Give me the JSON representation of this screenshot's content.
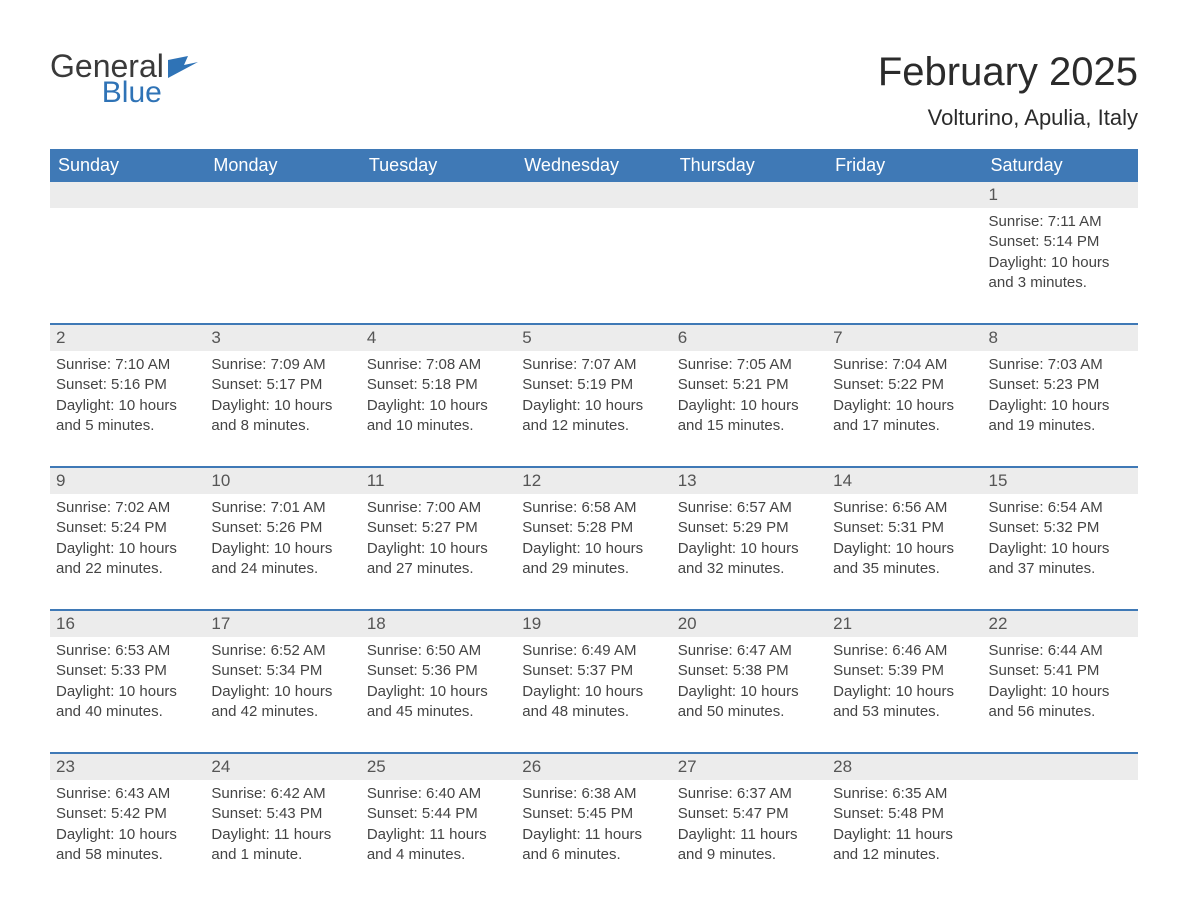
{
  "logo": {
    "line1": "General",
    "line2": "Blue"
  },
  "title": "February 2025",
  "location": "Volturino, Apulia, Italy",
  "colors": {
    "header_bg": "#3f79b6",
    "row_rule": "#3f79b6",
    "daynum_bg": "#ececec",
    "text": "#333333",
    "logo_blue": "#2f73b6"
  },
  "weekdays": [
    "Sunday",
    "Monday",
    "Tuesday",
    "Wednesday",
    "Thursday",
    "Friday",
    "Saturday"
  ],
  "labels": {
    "sunrise": "Sunrise:",
    "sunset": "Sunset:",
    "daylight": "Daylight:"
  },
  "first_weekday_index": 6,
  "days": [
    {
      "n": 1,
      "sunrise": "7:11 AM",
      "sunset": "5:14 PM",
      "daylight": "10 hours and 3 minutes."
    },
    {
      "n": 2,
      "sunrise": "7:10 AM",
      "sunset": "5:16 PM",
      "daylight": "10 hours and 5 minutes."
    },
    {
      "n": 3,
      "sunrise": "7:09 AM",
      "sunset": "5:17 PM",
      "daylight": "10 hours and 8 minutes."
    },
    {
      "n": 4,
      "sunrise": "7:08 AM",
      "sunset": "5:18 PM",
      "daylight": "10 hours and 10 minutes."
    },
    {
      "n": 5,
      "sunrise": "7:07 AM",
      "sunset": "5:19 PM",
      "daylight": "10 hours and 12 minutes."
    },
    {
      "n": 6,
      "sunrise": "7:05 AM",
      "sunset": "5:21 PM",
      "daylight": "10 hours and 15 minutes."
    },
    {
      "n": 7,
      "sunrise": "7:04 AM",
      "sunset": "5:22 PM",
      "daylight": "10 hours and 17 minutes."
    },
    {
      "n": 8,
      "sunrise": "7:03 AM",
      "sunset": "5:23 PM",
      "daylight": "10 hours and 19 minutes."
    },
    {
      "n": 9,
      "sunrise": "7:02 AM",
      "sunset": "5:24 PM",
      "daylight": "10 hours and 22 minutes."
    },
    {
      "n": 10,
      "sunrise": "7:01 AM",
      "sunset": "5:26 PM",
      "daylight": "10 hours and 24 minutes."
    },
    {
      "n": 11,
      "sunrise": "7:00 AM",
      "sunset": "5:27 PM",
      "daylight": "10 hours and 27 minutes."
    },
    {
      "n": 12,
      "sunrise": "6:58 AM",
      "sunset": "5:28 PM",
      "daylight": "10 hours and 29 minutes."
    },
    {
      "n": 13,
      "sunrise": "6:57 AM",
      "sunset": "5:29 PM",
      "daylight": "10 hours and 32 minutes."
    },
    {
      "n": 14,
      "sunrise": "6:56 AM",
      "sunset": "5:31 PM",
      "daylight": "10 hours and 35 minutes."
    },
    {
      "n": 15,
      "sunrise": "6:54 AM",
      "sunset": "5:32 PM",
      "daylight": "10 hours and 37 minutes."
    },
    {
      "n": 16,
      "sunrise": "6:53 AM",
      "sunset": "5:33 PM",
      "daylight": "10 hours and 40 minutes."
    },
    {
      "n": 17,
      "sunrise": "6:52 AM",
      "sunset": "5:34 PM",
      "daylight": "10 hours and 42 minutes."
    },
    {
      "n": 18,
      "sunrise": "6:50 AM",
      "sunset": "5:36 PM",
      "daylight": "10 hours and 45 minutes."
    },
    {
      "n": 19,
      "sunrise": "6:49 AM",
      "sunset": "5:37 PM",
      "daylight": "10 hours and 48 minutes."
    },
    {
      "n": 20,
      "sunrise": "6:47 AM",
      "sunset": "5:38 PM",
      "daylight": "10 hours and 50 minutes."
    },
    {
      "n": 21,
      "sunrise": "6:46 AM",
      "sunset": "5:39 PM",
      "daylight": "10 hours and 53 minutes."
    },
    {
      "n": 22,
      "sunrise": "6:44 AM",
      "sunset": "5:41 PM",
      "daylight": "10 hours and 56 minutes."
    },
    {
      "n": 23,
      "sunrise": "6:43 AM",
      "sunset": "5:42 PM",
      "daylight": "10 hours and 58 minutes."
    },
    {
      "n": 24,
      "sunrise": "6:42 AM",
      "sunset": "5:43 PM",
      "daylight": "11 hours and 1 minute."
    },
    {
      "n": 25,
      "sunrise": "6:40 AM",
      "sunset": "5:44 PM",
      "daylight": "11 hours and 4 minutes."
    },
    {
      "n": 26,
      "sunrise": "6:38 AM",
      "sunset": "5:45 PM",
      "daylight": "11 hours and 6 minutes."
    },
    {
      "n": 27,
      "sunrise": "6:37 AM",
      "sunset": "5:47 PM",
      "daylight": "11 hours and 9 minutes."
    },
    {
      "n": 28,
      "sunrise": "6:35 AM",
      "sunset": "5:48 PM",
      "daylight": "11 hours and 12 minutes."
    }
  ]
}
